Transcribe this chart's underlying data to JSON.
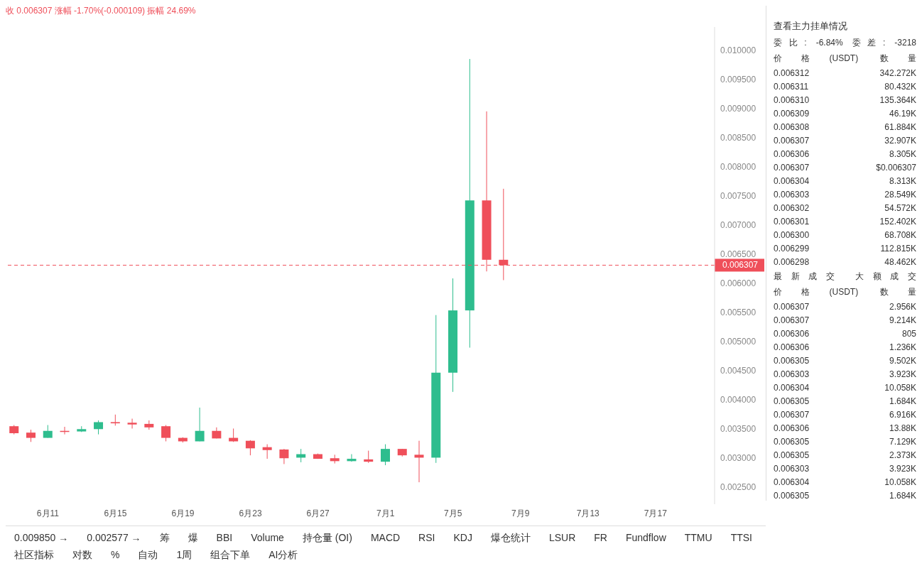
{
  "chart_data": [
    {
      "type": "candlestick",
      "subtitle": "收 0.006307 涨幅 -1.70%(-0.000109) 振幅 24.69%",
      "categories": [
        null,
        null,
        "6月11",
        null,
        null,
        null,
        "6月15",
        null,
        null,
        null,
        "6月19",
        null,
        null,
        null,
        "6月23",
        null,
        null,
        null,
        "6月27",
        null,
        null,
        null,
        "7月1",
        null,
        null,
        null,
        "7月5",
        null,
        null,
        null,
        "7月9",
        null,
        null,
        null,
        "7月13",
        null,
        null,
        null,
        "7月17",
        null,
        null,
        null
      ],
      "ohlc": [
        [
          0.00354,
          0.00356,
          0.0034,
          0.00342
        ],
        [
          0.00343,
          0.00348,
          0.00327,
          0.00334
        ],
        [
          0.00334,
          0.00356,
          0.00334,
          0.00346
        ],
        [
          0.00346,
          0.00353,
          0.0034,
          0.00345
        ],
        [
          0.00345,
          0.00354,
          0.00344,
          0.00349
        ],
        [
          0.00349,
          0.00364,
          0.0034,
          0.00361
        ],
        [
          0.00361,
          0.00374,
          0.00355,
          0.00359
        ],
        [
          0.0036,
          0.00367,
          0.0035,
          0.00357
        ],
        [
          0.00358,
          0.00364,
          0.00348,
          0.00352
        ],
        [
          0.00354,
          0.00356,
          0.00328,
          0.00334
        ],
        [
          0.00334,
          0.00335,
          0.00326,
          0.00328
        ],
        [
          0.00328,
          0.00386,
          0.00328,
          0.00346
        ],
        [
          0.00346,
          0.00352,
          0.00333,
          0.00333
        ],
        [
          0.00334,
          0.0035,
          0.00327,
          0.00328
        ],
        [
          0.00329,
          0.0033,
          0.00304,
          0.00316
        ],
        [
          0.00318,
          0.00323,
          0.00298,
          0.00313
        ],
        [
          0.00314,
          0.00315,
          0.00289,
          0.00299
        ],
        [
          0.003,
          0.00315,
          0.00292,
          0.00306
        ],
        [
          0.00306,
          0.00307,
          0.00298,
          0.00298
        ],
        [
          0.00299,
          0.00305,
          0.0029,
          0.00294
        ],
        [
          0.00294,
          0.00306,
          0.00293,
          0.00298
        ],
        [
          0.00297,
          0.00312,
          0.00291,
          0.00293
        ],
        [
          0.00293,
          0.00323,
          0.00287,
          0.00315
        ],
        [
          0.00315,
          0.00315,
          0.00302,
          0.00304
        ],
        [
          0.00305,
          0.00329,
          0.002577,
          0.003
        ],
        [
          0.003,
          0.00545,
          0.00291,
          0.00446
        ],
        [
          0.00446,
          0.00608,
          0.00413,
          0.00553
        ],
        [
          0.00553,
          0.00985,
          0.00489,
          0.00742
        ],
        [
          0.00742,
          0.00895,
          0.0062,
          0.0064
        ],
        [
          0.0064,
          0.00762,
          0.00605,
          0.006307
        ],
        null,
        null,
        null,
        null,
        null,
        null,
        null,
        null,
        null,
        null,
        null,
        null
      ],
      "colors": [
        "#ef4f5a",
        "#ef4f5a",
        "#2ebd8e",
        "#ef4f5a",
        "#2ebd8e",
        "#2ebd8e",
        "#ef4f5a",
        "#ef4f5a",
        "#ef4f5a",
        "#ef4f5a",
        "#ef4f5a",
        "#2ebd8e",
        "#ef4f5a",
        "#ef4f5a",
        "#ef4f5a",
        "#ef4f5a",
        "#ef4f5a",
        "#2ebd8e",
        "#ef4f5a",
        "#ef4f5a",
        "#2ebd8e",
        "#ef4f5a",
        "#2ebd8e",
        "#ef4f5a",
        "#ef4f5a",
        "#2ebd8e",
        "#2ebd8e",
        "#2ebd8e",
        "#ef4f5a",
        "#ef4f5a",
        null,
        null,
        null,
        null,
        null,
        null,
        null,
        null,
        null,
        null,
        null,
        null
      ],
      "ylim": [
        0.0022,
        0.0104
      ],
      "yticks": [
        {
          "value": 0.0025,
          "label": "0.002500"
        },
        {
          "value": 0.003,
          "label": "0.003000"
        },
        {
          "value": 0.0035,
          "label": "0.003500"
        },
        {
          "value": 0.004,
          "label": "0.004000"
        },
        {
          "value": 0.0045,
          "label": "0.004500"
        },
        {
          "value": 0.005,
          "label": "0.005000"
        },
        {
          "value": 0.0055,
          "label": "0.005500"
        },
        {
          "value": 0.006,
          "label": "0.006000"
        },
        {
          "value": 0.0065,
          "label": "0.006500"
        },
        {
          "value": 0.007,
          "label": "0.007000"
        },
        {
          "value": 0.0075,
          "label": "0.007500"
        },
        {
          "value": 0.008,
          "label": "0.008000"
        },
        {
          "value": 0.0085,
          "label": "0.008500"
        },
        {
          "value": 0.009,
          "label": "0.009000"
        },
        {
          "value": 0.0095,
          "label": "0.009500"
        },
        {
          "value": 0.01,
          "label": "0.010000"
        }
      ],
      "ref_lines": [
        {
          "axis": "y",
          "value": 0.006307,
          "label": "0.006307",
          "color": "#ef4f5a",
          "line_style": "dashed"
        }
      ],
      "annotations": [
        "0.009850 →",
        "0.002577 →",
        "筹",
        "爆",
        "BBI",
        "Volume",
        "持仓量 (OI)",
        "MACD",
        "RSI",
        "KDJ",
        "爆仓统计",
        "LSUR",
        "FR",
        "Fundflow",
        "TTMU",
        "TTSI",
        "社区指标",
        "对数",
        "%",
        "自动",
        "1周",
        "组合下单",
        "AI分析"
      ]
    },
    {
      "type": "other",
      "title": "查看主力挂单情况",
      "annotations": [
        "委比: -6.84% 委差: -3218",
        "价格(USDT) 数量",
        "0.006312 342.272K",
        "0.006311 80.432K",
        "0.006310 135.364K",
        "0.006309 46.19K",
        "0.006308 61.884K",
        "0.006307 32.907K",
        "0.006306 8.305K",
        "0.006307 $0.006307",
        "0.006304 8.313K",
        "0.006303 28.549K",
        "0.006302 54.572K",
        "0.006301 152.402K",
        "0.006300 68.708K",
        "0.006299 112.815K",
        "0.006298 48.462K",
        "最新成交 大额成交",
        "价格(USDT) 数量",
        "0.006307 2.956K",
        "0.006307 9.214K",
        "0.006306 805",
        "0.006306 1.236K",
        "0.006305 9.502K",
        "0.006303 3.923K",
        "0.006304 10.058K",
        "0.006305 1.684K",
        "0.006307 6.916K",
        "0.006306 13.88K",
        "0.006305 7.129K",
        "0.006305 2.373K",
        "0.006303 3.923K",
        "0.006304 10.058K",
        "0.006305 1.684K"
      ]
    }
  ]
}
